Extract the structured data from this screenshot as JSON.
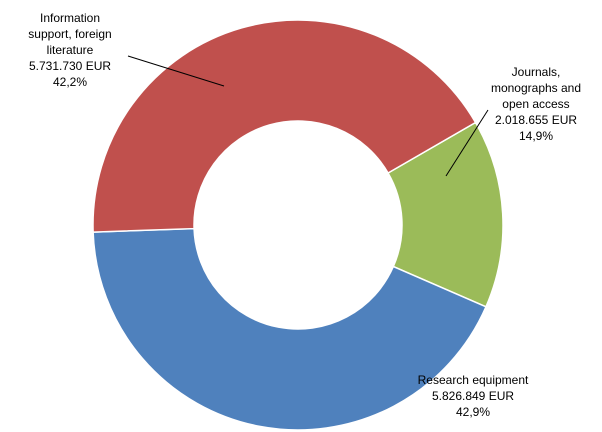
{
  "chart_data": {
    "type": "pie",
    "variant": "doughnut",
    "slices": [
      {
        "label_lines": [
          "Journals,",
          "monographs and",
          "open access"
        ],
        "amount": "2.018.655 EUR",
        "percent_label": "14,9%",
        "value": 2018655,
        "color": "#9BBB59"
      },
      {
        "label_lines": [
          "Research equipment"
        ],
        "amount": "5.826.849 EUR",
        "percent_label": "42,9%",
        "value": 5826849,
        "color": "#4F81BD"
      },
      {
        "label_lines": [
          "Information",
          "support, foreign",
          "literature"
        ],
        "amount": "5.731.730 EUR",
        "percent_label": "42,2%",
        "value": 5731730,
        "color": "#C0504D"
      }
    ],
    "legend": "none"
  }
}
